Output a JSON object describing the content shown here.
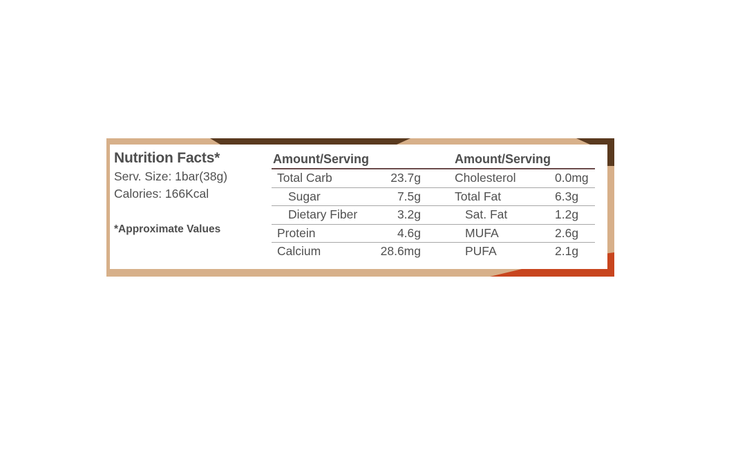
{
  "title": "Nutrition Facts*",
  "serving_size": "Serv. Size: 1bar(38g)",
  "calories": "Calories: 166Kcal",
  "footnote": "*Approximate Values",
  "headers": {
    "left": "Amount/Serving",
    "right": "Amount/Serving"
  },
  "rows": [
    {
      "name_a": "Total Carb",
      "value_a": "23.7g",
      "name_b": "Cholesterol",
      "value_b": "0.0mg"
    },
    {
      "name_a": "Sugar",
      "value_a": "7.5g",
      "name_b": "Total Fat",
      "value_b": "6.3g"
    },
    {
      "name_a": "Dietary Fiber",
      "value_a": "3.2g",
      "name_b": "Sat. Fat",
      "value_b": "1.2g"
    },
    {
      "name_a": "Protein",
      "value_a": "4.6g",
      "name_b": "MUFA",
      "value_b": "2.6g"
    },
    {
      "name_a": "Calcium",
      "value_a": "28.6mg",
      "name_b": "PUFA",
      "value_b": "2.1g"
    }
  ],
  "colors": {
    "frame_tan": "#d7b08a",
    "chocolate_brown": "#5a3a1f",
    "accent_orange": "#c8451e",
    "header_rule": "#6a4a4a"
  }
}
